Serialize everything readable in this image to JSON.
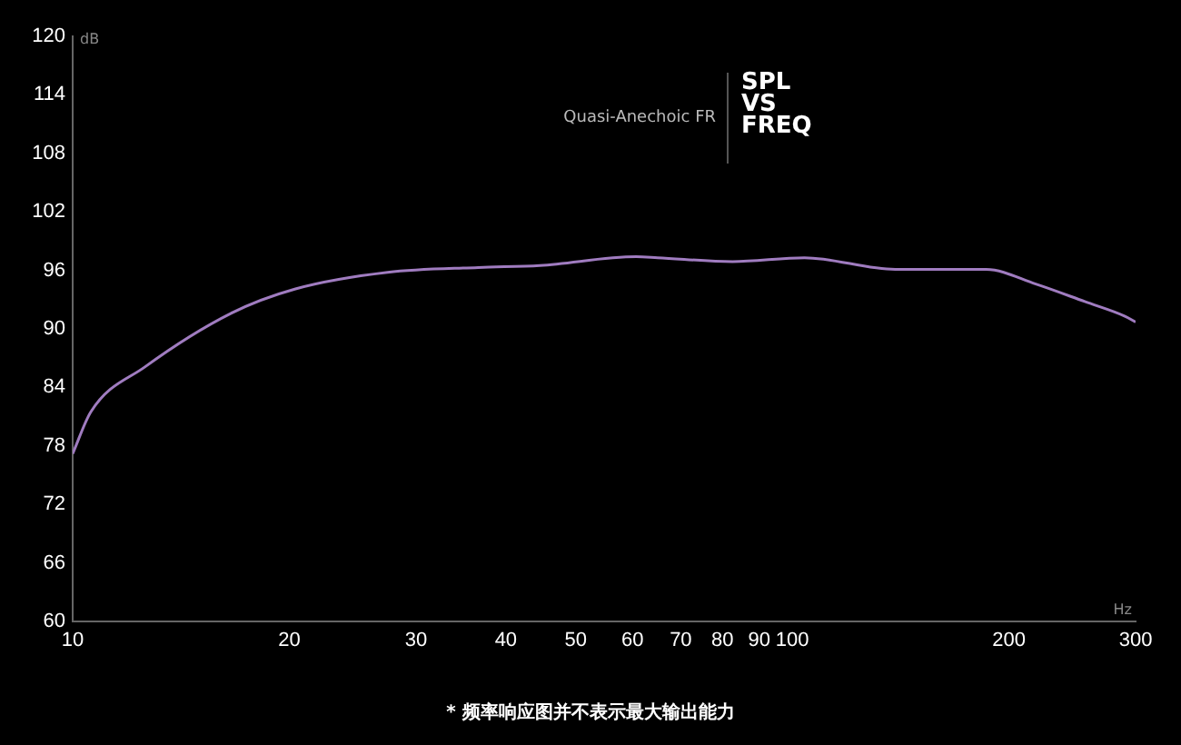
{
  "chart_data": {
    "type": "line",
    "title": "SPL\nVS\nFREQ",
    "subtitle": "Quasi-Anechoic FR",
    "xlabel": "Hz",
    "ylabel": "dB",
    "log": "x",
    "grid": false,
    "legend": false,
    "marker": "none",
    "line_style": "solid",
    "xlim": [
      10,
      300
    ],
    "xticks": [
      10,
      20,
      30,
      40,
      50,
      60,
      70,
      80,
      90,
      100,
      200,
      300
    ],
    "ylim": [
      60,
      120
    ],
    "yticks": [
      60,
      66,
      72,
      78,
      84,
      90,
      96,
      102,
      108,
      114,
      120
    ],
    "series": [
      {
        "color": "#a07cc0",
        "x": [
          10,
          10.6,
          12.6,
          16.6,
          20.4,
          27.4,
          36.6,
          44.6,
          60.7,
          65,
          82.6,
          104,
          139,
          186,
          218,
          255,
          290,
          300
        ],
        "values": [
          77.2,
          81.5,
          86.1,
          91.6,
          94.1,
          95.8,
          96.3,
          96.5,
          97.4,
          97.3,
          96.9,
          97.3,
          96.1,
          96.1,
          94.6,
          92.8,
          91.3,
          90.7
        ]
      }
    ],
    "annotations": [
      "* 频率响应图并不表示最大输出能力"
    ]
  }
}
